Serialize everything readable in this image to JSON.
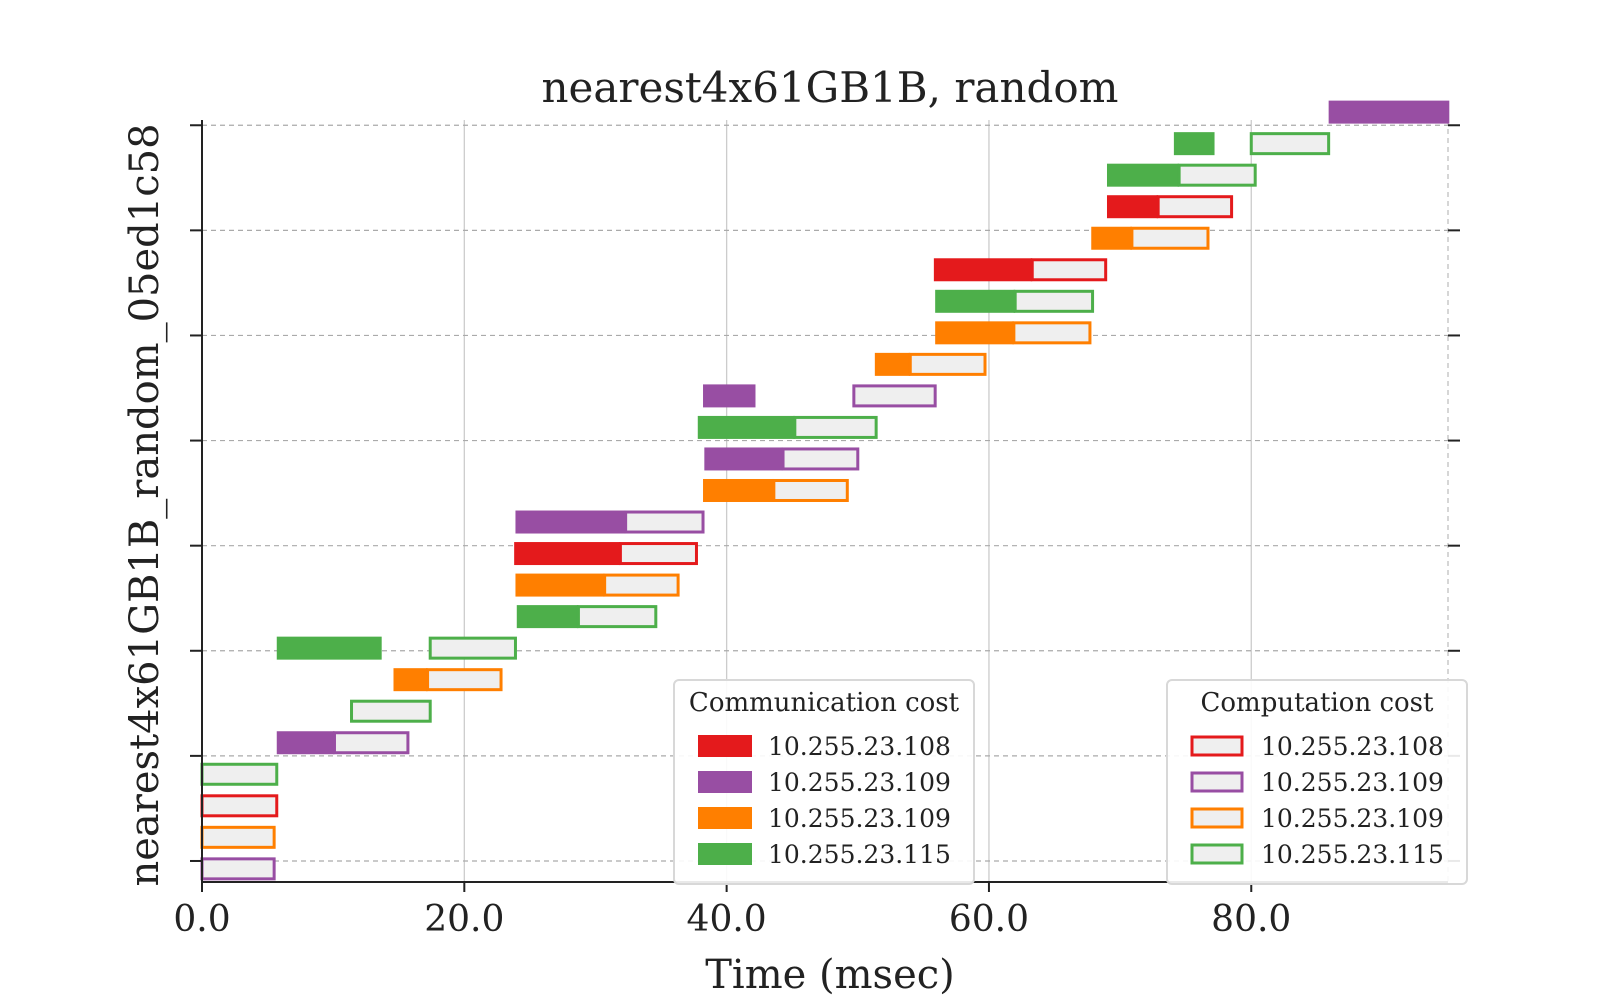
{
  "chart_data": {
    "type": "gantt",
    "title": "nearest4x61GB1B, random",
    "xlabel": "Time (msec)",
    "ylabel": "nearest4x61GB1B_random_05ed1c58",
    "xlim": [
      0,
      95
    ],
    "xticks": [
      0,
      20,
      40,
      60,
      80
    ],
    "xtick_labels": [
      "0.0",
      "20.0",
      "40.0",
      "60.0",
      "80.0"
    ],
    "ylim": [
      0,
      14.5
    ],
    "yticks": [
      0.4,
      2.4,
      4.4,
      6.4,
      8.4,
      10.4,
      12.4,
      14.4
    ],
    "grid": {
      "x": "solid",
      "y": "dashed"
    },
    "colors": {
      "10.255.23.108": "#e41a1c",
      "10.255.23.109a": "#984ea3",
      "10.255.23.109b": "#ff7f00",
      "10.255.23.115": "#4daf4a",
      "computation_fill": "#efefef"
    },
    "legend_communication": {
      "title": "Communication cost",
      "placement": "lower-center-right",
      "entries": [
        {
          "label": "10.255.23.108",
          "color": "#e41a1c"
        },
        {
          "label": "10.255.23.109",
          "color": "#984ea3"
        },
        {
          "label": "10.255.23.109",
          "color": "#ff7f00"
        },
        {
          "label": "10.255.23.115",
          "color": "#4daf4a"
        }
      ]
    },
    "legend_computation": {
      "title": "Computation cost",
      "placement": "lower-right",
      "entries": [
        {
          "label": "10.255.23.108",
          "color": "#e41a1c"
        },
        {
          "label": "10.255.23.109",
          "color": "#984ea3"
        },
        {
          "label": "10.255.23.109",
          "color": "#ff7f00"
        },
        {
          "label": "10.255.23.115",
          "color": "#4daf4a"
        }
      ]
    },
    "tasks": [
      {
        "y": 0.25,
        "host": "10.255.23.109a",
        "start": 0.0,
        "comm": 0.0,
        "comp": 5.5
      },
      {
        "y": 0.85,
        "host": "10.255.23.109b",
        "start": 0.0,
        "comm": 0.0,
        "comp": 5.5
      },
      {
        "y": 1.45,
        "host": "10.255.23.108",
        "start": 0.0,
        "comm": 0.0,
        "comp": 5.7
      },
      {
        "y": 2.05,
        "host": "10.255.23.115",
        "start": 0.0,
        "comm": 0.0,
        "comp": 5.7
      },
      {
        "y": 2.65,
        "host": "10.255.23.109a",
        "start": 5.7,
        "comm": 4.4,
        "comp": 5.6
      },
      {
        "y": 3.25,
        "host": "10.255.23.115",
        "start": 11.4,
        "comm": 0.0,
        "comp": 6.0
      },
      {
        "y": 3.85,
        "host": "10.255.23.109b",
        "start": 14.6,
        "comm": 2.6,
        "comp": 5.6
      },
      {
        "y": 4.45,
        "host": "10.255.23.115",
        "start": 5.7,
        "comm": 8.0,
        "comp": 0.0
      },
      {
        "y": 4.45,
        "host": "10.255.23.115",
        "start": 17.4,
        "comm": 0.0,
        "comp": 6.5
      },
      {
        "y": 5.05,
        "host": "10.255.23.115",
        "start": 24.0,
        "comm": 4.7,
        "comp": 5.9
      },
      {
        "y": 5.65,
        "host": "10.255.23.109b",
        "start": 23.9,
        "comm": 6.8,
        "comp": 5.6
      },
      {
        "y": 6.25,
        "host": "10.255.23.108",
        "start": 23.8,
        "comm": 8.1,
        "comp": 5.8
      },
      {
        "y": 6.85,
        "host": "10.255.23.109a",
        "start": 23.9,
        "comm": 8.4,
        "comp": 5.9
      },
      {
        "y": 7.45,
        "host": "10.255.23.109b",
        "start": 38.2,
        "comm": 5.4,
        "comp": 5.6
      },
      {
        "y": 8.05,
        "host": "10.255.23.109a",
        "start": 38.3,
        "comm": 6.0,
        "comp": 5.7
      },
      {
        "y": 8.65,
        "host": "10.255.23.115",
        "start": 37.8,
        "comm": 7.4,
        "comp": 6.2
      },
      {
        "y": 9.25,
        "host": "10.255.23.109a",
        "start": 38.2,
        "comm": 4.0,
        "comp": 0.0
      },
      {
        "y": 9.25,
        "host": "10.255.23.109a",
        "start": 49.7,
        "comm": 0.0,
        "comp": 6.2
      },
      {
        "y": 9.85,
        "host": "10.255.23.109b",
        "start": 51.3,
        "comm": 2.7,
        "comp": 5.7
      },
      {
        "y": 10.45,
        "host": "10.255.23.109b",
        "start": 55.9,
        "comm": 6.0,
        "comp": 5.8
      },
      {
        "y": 11.05,
        "host": "10.255.23.115",
        "start": 55.9,
        "comm": 6.1,
        "comp": 5.9
      },
      {
        "y": 11.65,
        "host": "10.255.23.108",
        "start": 55.8,
        "comm": 7.5,
        "comp": 5.6
      },
      {
        "y": 12.25,
        "host": "10.255.23.109b",
        "start": 67.8,
        "comm": 3.1,
        "comp": 5.8
      },
      {
        "y": 12.85,
        "host": "10.255.23.108",
        "start": 69.0,
        "comm": 3.9,
        "comp": 5.6
      },
      {
        "y": 13.45,
        "host": "10.255.23.115",
        "start": 69.0,
        "comm": 5.5,
        "comp": 5.8
      },
      {
        "y": 14.05,
        "host": "10.255.23.115",
        "start": 74.1,
        "comm": 3.1,
        "comp": 0.0
      },
      {
        "y": 14.05,
        "host": "10.255.23.115",
        "start": 80.0,
        "comm": 0.0,
        "comp": 5.9
      },
      {
        "y": 14.65,
        "host": "10.255.23.109a",
        "start": 85.9,
        "comm": 9.2,
        "comp": 0.0
      }
    ]
  }
}
